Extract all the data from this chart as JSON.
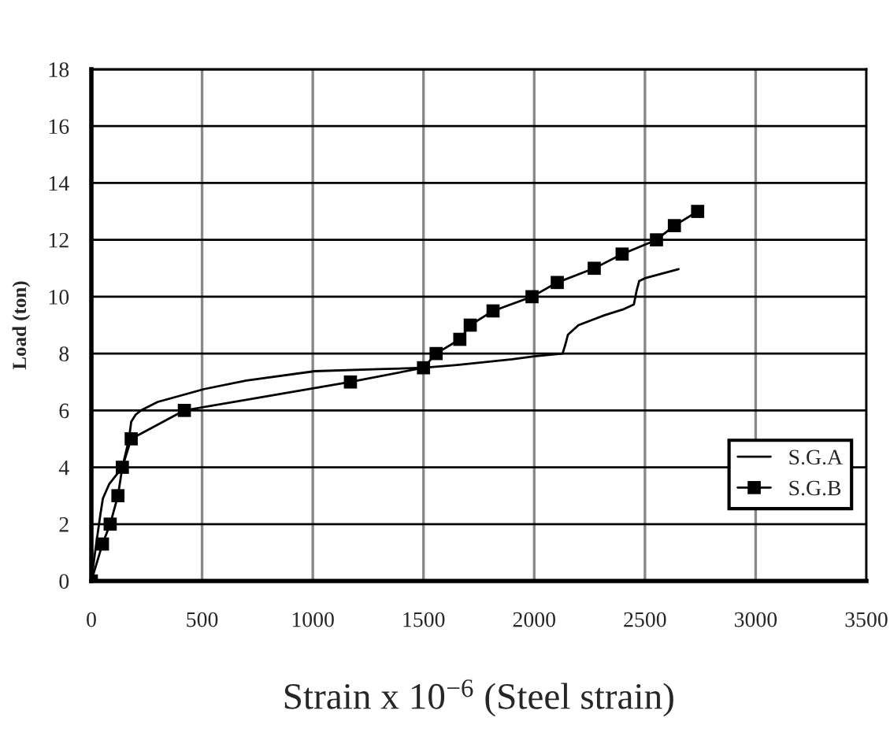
{
  "chart_data": {
    "type": "line",
    "xlabel": "Strain x 10$^{−6}$ (Steel strain)",
    "ylabel": "Load (ton)",
    "xlim": [
      0,
      3500
    ],
    "xticks": [
      0,
      500,
      1000,
      1500,
      2000,
      2500,
      3000,
      3500
    ],
    "ylim": [
      0,
      18
    ],
    "yticks": [
      0,
      2,
      4,
      6,
      8,
      10,
      12,
      14,
      16,
      18
    ],
    "grid": true,
    "legend": "bottom right",
    "series": [
      {
        "name": "S.G.A",
        "color": "#000000",
        "marker": "none",
        "x": [
          0,
          20,
          40,
          52,
          80,
          140,
          170,
          180,
          200,
          224,
          300,
          509,
          700,
          1009,
          1300,
          1500,
          1652,
          1900,
          2000,
          2128,
          2140,
          2152,
          2200,
          2318,
          2400,
          2450,
          2462,
          2474,
          2500,
          2652
        ],
        "values": [
          0,
          1.2,
          2.3,
          2.9,
          3.4,
          4,
          5,
          5.6,
          5.85,
          6,
          6.3,
          6.75,
          7.05,
          7.38,
          7.45,
          7.5,
          7.6,
          7.8,
          7.9,
          8.0,
          8.3,
          8.66,
          9.0,
          9.35,
          9.55,
          9.73,
          10.2,
          10.55,
          10.65,
          10.97
        ]
      },
      {
        "name": "S.G.B",
        "color": "#000000",
        "marker": "square",
        "x": [
          0,
          50,
          85,
          120,
          140,
          180,
          420,
          1170,
          1500,
          1557,
          1664,
          1711,
          1814,
          1990,
          2104,
          2271,
          2397,
          2552,
          2633,
          2738
        ],
        "values": [
          0,
          1.3,
          2,
          3,
          4,
          5,
          6,
          7,
          7.5,
          8,
          8.5,
          9,
          9.5,
          10,
          10.5,
          11,
          11.5,
          12,
          12.5,
          13
        ]
      }
    ]
  }
}
